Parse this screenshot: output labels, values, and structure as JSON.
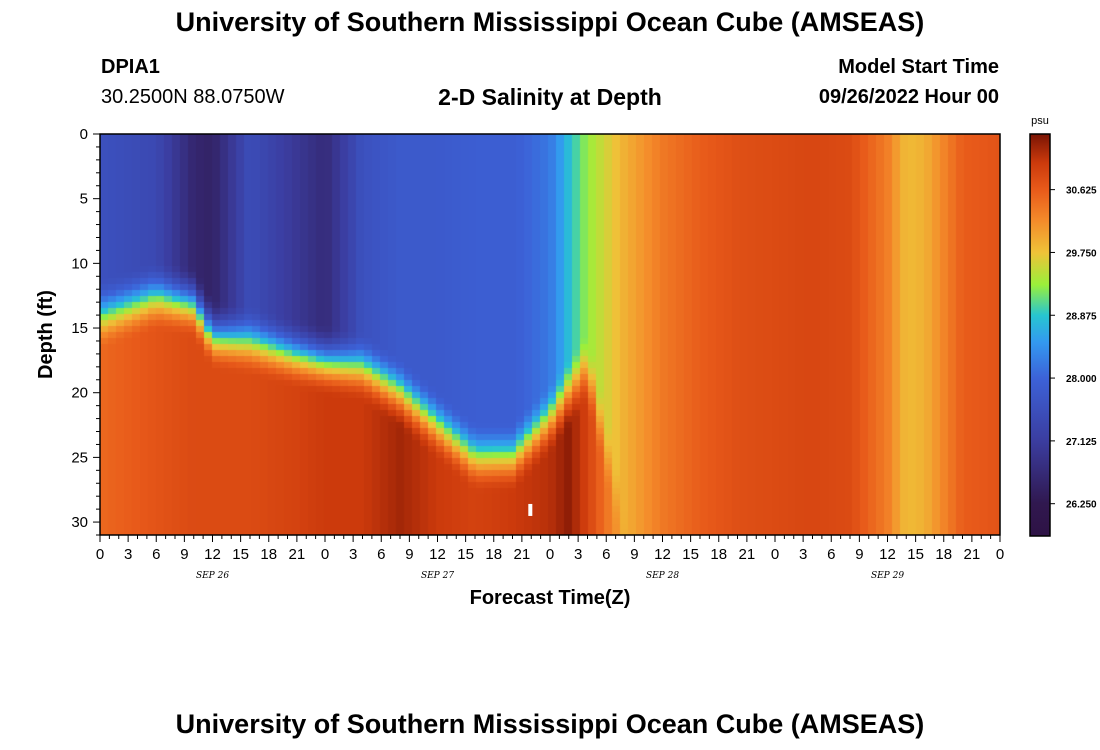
{
  "header": {
    "title": "University of Southern Mississippi Ocean Cube (AMSEAS)",
    "station_id": "DPIA1",
    "station_coords": "30.2500N  88.0750W",
    "product": "2-D Salinity at Depth",
    "model_start_label": "Model Start Time",
    "model_start_value": "09/26/2022 Hour 00"
  },
  "footer": {
    "title": "University of Southern Mississippi Ocean Cube (AMSEAS)"
  },
  "chart_data": {
    "type": "heatmap",
    "xlabel": "Forecast Time(Z)",
    "ylabel": "Depth (ft)",
    "x_hours_range": [
      0,
      96
    ],
    "x_tick_labels": [
      "0",
      "3",
      "6",
      "9",
      "12",
      "15",
      "18",
      "21",
      "0",
      "3",
      "6",
      "9",
      "12",
      "15",
      "18",
      "21",
      "0",
      "3",
      "6",
      "9",
      "12",
      "15",
      "18",
      "21",
      "0",
      "3",
      "6",
      "9",
      "12",
      "15",
      "18",
      "21",
      "0"
    ],
    "date_labels": [
      "SEP 26",
      "SEP 27",
      "SEP 28",
      "SEP 29"
    ],
    "ylim": [
      0,
      31
    ],
    "y_ticks": [
      0,
      5,
      10,
      15,
      20,
      25,
      30
    ],
    "colorbar": {
      "unit": "psu",
      "range": [
        25.8,
        31.4
      ],
      "tick_labels": [
        "30.625",
        "29.750",
        "28.875",
        "28.000",
        "27.125",
        "26.250"
      ],
      "stops": [
        {
          "v": 25.8,
          "color": "#2e1245"
        },
        {
          "v": 26.25,
          "color": "#30184f"
        },
        {
          "v": 27.125,
          "color": "#3b3da0"
        },
        {
          "v": 28.0,
          "color": "#3c62d8"
        },
        {
          "v": 28.5,
          "color": "#3399f0"
        },
        {
          "v": 28.875,
          "color": "#27c6d0"
        },
        {
          "v": 29.3,
          "color": "#9af03a"
        },
        {
          "v": 29.75,
          "color": "#efc238"
        },
        {
          "v": 30.2,
          "color": "#f48a2a"
        },
        {
          "v": 30.625,
          "color": "#e85a1a"
        },
        {
          "v": 31.0,
          "color": "#cc3a0c"
        },
        {
          "v": 31.4,
          "color": "#7a1404"
        }
      ]
    },
    "salinity_profiles_psu": {
      "hours": [
        0,
        6,
        10,
        12,
        16,
        21,
        24,
        28,
        32,
        36,
        40,
        44,
        48,
        50,
        52,
        56,
        60,
        64,
        68,
        72,
        76,
        80,
        84,
        86,
        88,
        92,
        96
      ],
      "surface": [
        27.6,
        27.4,
        26.6,
        26.5,
        27.5,
        27.0,
        26.7,
        27.6,
        27.8,
        27.8,
        27.9,
        27.9,
        28.2,
        28.8,
        29.3,
        29.9,
        30.35,
        30.6,
        30.75,
        30.8,
        30.85,
        30.8,
        30.3,
        29.8,
        29.9,
        30.6,
        30.7
      ],
      "mixed_layer_depth_ft": [
        14,
        12.5,
        13,
        15.5,
        16,
        17,
        17.5,
        18,
        20,
        22.5,
        25,
        25,
        22,
        20,
        18,
        31,
        31,
        31,
        31,
        31,
        31,
        31,
        31,
        31,
        31,
        31,
        31
      ],
      "bottom": [
        30.5,
        30.7,
        30.8,
        30.8,
        30.8,
        30.9,
        31.0,
        31.0,
        31.2,
        31.0,
        30.9,
        31.0,
        31.1,
        31.3,
        30.9,
        29.9,
        30.35,
        30.6,
        30.75,
        30.8,
        30.85,
        30.8,
        30.3,
        29.8,
        29.9,
        30.6,
        30.7
      ]
    }
  }
}
